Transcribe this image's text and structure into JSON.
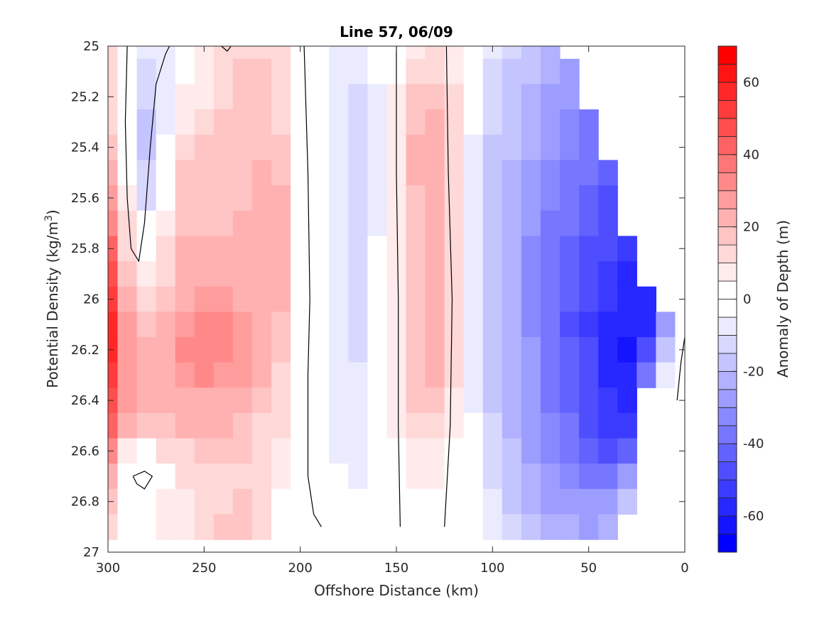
{
  "chart_data": {
    "type": "heatmap",
    "title": "Line 57, 06/09",
    "xlabel": "Offshore Distance (km)",
    "ylabel_text": "Potential Density (kg/m",
    "ylabel_sup": "3",
    "ylabel_close": ")",
    "xlim": [
      300,
      0
    ],
    "ylim": [
      25,
      27
    ],
    "x_ticks": [
      300,
      250,
      200,
      150,
      100,
      50,
      0
    ],
    "x_tick_labels": [
      "300",
      "250",
      "200",
      "150",
      "100",
      "50",
      "0"
    ],
    "y_ticks": [
      25,
      25.2,
      25.4,
      25.6,
      25.8,
      26,
      26.2,
      26.4,
      26.6,
      26.8,
      27
    ],
    "y_tick_labels": [
      "25",
      "25.2",
      "25.4",
      "25.6",
      "25.8",
      "26",
      "26.2",
      "26.4",
      "26.6",
      "26.8",
      "27"
    ],
    "grid": false,
    "colorbar": {
      "label": "Anomaly of Depth (m)",
      "range": [
        -70,
        70
      ],
      "step": 5,
      "ticks": [
        -60,
        -40,
        -20,
        0,
        20,
        40,
        60
      ],
      "tick_labels": [
        "-60",
        "-40",
        "-20",
        "0",
        "20",
        "40",
        "60"
      ],
      "colormap": "blue-white-red",
      "low_color": "#0000ff",
      "mid_color": "#ffffff",
      "high_color": "#ff0000"
    },
    "x_values_km": [
      300,
      290,
      280,
      270,
      260,
      250,
      240,
      230,
      220,
      210,
      200,
      190,
      180,
      170,
      160,
      150,
      140,
      130,
      120,
      110,
      100,
      90,
      80,
      70,
      60,
      50,
      40,
      30,
      20,
      10,
      0
    ],
    "y_values_sigma": [
      25.0,
      25.1,
      25.2,
      25.3,
      25.4,
      25.5,
      25.6,
      25.7,
      25.8,
      25.9,
      26.0,
      26.1,
      26.2,
      26.3,
      26.4,
      26.5,
      26.6,
      26.7,
      26.8,
      26.9
    ],
    "anomaly_m": [
      [
        10,
        0,
        -8,
        -8,
        0,
        5,
        12,
        14,
        14,
        10,
        0,
        -3,
        -6,
        -8,
        -4,
        2,
        8,
        10,
        6,
        -4,
        -10,
        -14,
        -18,
        -22,
        null,
        null,
        null,
        null,
        null,
        null,
        null
      ],
      [
        10,
        0,
        -12,
        -10,
        2,
        5,
        12,
        15,
        15,
        10,
        0,
        -3,
        -8,
        -10,
        -5,
        4,
        12,
        14,
        8,
        -4,
        -12,
        -16,
        -20,
        -24,
        -28,
        null,
        null,
        null,
        null,
        null,
        null
      ],
      [
        12,
        0,
        -15,
        -10,
        5,
        8,
        14,
        16,
        16,
        12,
        0,
        -3,
        -8,
        -12,
        -6,
        5,
        16,
        18,
        10,
        -5,
        -14,
        -18,
        -22,
        -26,
        -30,
        null,
        null,
        null,
        null,
        null,
        null
      ],
      [
        14,
        0,
        -18,
        -8,
        8,
        12,
        16,
        17,
        17,
        14,
        0,
        -3,
        -8,
        -14,
        -6,
        6,
        18,
        20,
        12,
        -5,
        -14,
        -20,
        -24,
        -28,
        -32,
        -36,
        null,
        null,
        null,
        null,
        null
      ],
      [
        18,
        0,
        -18,
        -5,
        12,
        15,
        16,
        18,
        18,
        16,
        0,
        -3,
        -8,
        -14,
        -6,
        8,
        20,
        24,
        14,
        -6,
        -16,
        -20,
        -24,
        -30,
        -34,
        -38,
        null,
        null,
        null,
        null,
        null
      ],
      [
        22,
        2,
        -15,
        -2,
        15,
        16,
        16,
        18,
        20,
        18,
        0,
        -3,
        -8,
        -14,
        -6,
        8,
        20,
        22,
        14,
        -6,
        -16,
        -22,
        -26,
        -32,
        -36,
        -40,
        -44,
        null,
        null,
        null,
        null
      ],
      [
        28,
        5,
        -12,
        0,
        16,
        16,
        16,
        18,
        22,
        20,
        0,
        -3,
        -8,
        -12,
        -6,
        8,
        18,
        20,
        12,
        -6,
        -16,
        -22,
        -28,
        -34,
        -38,
        -42,
        -46,
        null,
        null,
        null,
        null
      ],
      [
        34,
        10,
        -5,
        5,
        18,
        18,
        18,
        20,
        24,
        22,
        0,
        -3,
        -8,
        -12,
        -6,
        8,
        18,
        22,
        12,
        -6,
        -16,
        -24,
        -30,
        -36,
        -40,
        -44,
        -48,
        null,
        null,
        null,
        null
      ],
      [
        40,
        14,
        0,
        10,
        20,
        20,
        20,
        22,
        24,
        22,
        0,
        -3,
        -8,
        -12,
        -5,
        8,
        18,
        22,
        12,
        -6,
        -16,
        -24,
        -32,
        -38,
        -42,
        -46,
        -50,
        -54,
        null,
        null,
        null
      ],
      [
        46,
        18,
        8,
        14,
        22,
        22,
        22,
        22,
        24,
        20,
        0,
        -3,
        -8,
        -12,
        -5,
        8,
        18,
        22,
        12,
        -6,
        -16,
        -24,
        -32,
        -38,
        -44,
        -48,
        -52,
        -56,
        null,
        null,
        null
      ],
      [
        52,
        22,
        14,
        18,
        24,
        26,
        26,
        24,
        24,
        20,
        0,
        -3,
        -8,
        -12,
        -5,
        8,
        18,
        22,
        12,
        -6,
        -16,
        -24,
        -32,
        -38,
        -44,
        -50,
        -54,
        -58,
        -58,
        null,
        null
      ],
      [
        56,
        26,
        18,
        22,
        28,
        30,
        30,
        26,
        22,
        18,
        0,
        -3,
        -8,
        -12,
        -5,
        8,
        18,
        22,
        12,
        -6,
        -16,
        -24,
        -32,
        -38,
        -46,
        -52,
        -56,
        -60,
        -60,
        -30,
        -5
      ],
      [
        56,
        28,
        20,
        24,
        30,
        32,
        30,
        28,
        22,
        16,
        0,
        -3,
        -8,
        -12,
        -5,
        8,
        18,
        22,
        12,
        -6,
        -16,
        -24,
        -30,
        -36,
        -44,
        -50,
        -56,
        -62,
        -50,
        -20,
        0
      ],
      [
        52,
        28,
        20,
        24,
        28,
        30,
        28,
        26,
        20,
        14,
        0,
        -3,
        -8,
        -10,
        -4,
        8,
        18,
        20,
        10,
        -6,
        -16,
        -24,
        -30,
        -36,
        -44,
        -50,
        -56,
        -60,
        -40,
        -10,
        0
      ],
      [
        46,
        26,
        20,
        22,
        24,
        24,
        24,
        22,
        18,
        12,
        0,
        -3,
        -6,
        -10,
        -4,
        6,
        16,
        16,
        8,
        -6,
        -16,
        -24,
        -30,
        -36,
        -42,
        -48,
        -54,
        -58,
        null,
        null,
        null
      ],
      [
        40,
        20,
        16,
        18,
        20,
        20,
        20,
        18,
        14,
        10,
        0,
        -3,
        -6,
        -8,
        -3,
        5,
        12,
        12,
        6,
        -5,
        -14,
        -22,
        -28,
        -34,
        -40,
        -46,
        -52,
        -54,
        null,
        null,
        null
      ],
      [
        32,
        8,
        0,
        10,
        14,
        16,
        18,
        16,
        12,
        8,
        0,
        -3,
        -6,
        -8,
        -3,
        4,
        8,
        8,
        4,
        -5,
        -14,
        -20,
        -26,
        -32,
        -36,
        -42,
        -46,
        -44,
        null,
        null,
        null
      ],
      [
        24,
        -2,
        -4,
        4,
        10,
        12,
        14,
        14,
        10,
        6,
        0,
        -3,
        -5,
        -6,
        -2,
        3,
        6,
        6,
        2,
        -5,
        -12,
        -18,
        -24,
        -28,
        -32,
        -36,
        -38,
        -30,
        null,
        null,
        null
      ],
      [
        18,
        4,
        2,
        6,
        8,
        10,
        14,
        16,
        10,
        4,
        0,
        -2,
        -4,
        -5,
        -2,
        2,
        4,
        4,
        2,
        -4,
        -10,
        -16,
        -22,
        -26,
        -28,
        -30,
        -30,
        -20,
        null,
        null,
        null
      ],
      [
        14,
        4,
        4,
        6,
        8,
        10,
        16,
        18,
        10,
        2,
        0,
        -2,
        -3,
        -4,
        -2,
        1,
        2,
        2,
        1,
        -4,
        -8,
        -14,
        -18,
        -22,
        -24,
        -26,
        -24,
        null,
        null,
        null,
        null
      ]
    ],
    "zero_contour_lines": [
      [
        [
          290,
          25.0
        ],
        [
          291,
          25.3
        ],
        [
          290,
          25.6
        ],
        [
          288,
          25.8
        ],
        [
          284,
          25.85
        ],
        [
          281,
          25.7
        ],
        [
          278,
          25.4
        ],
        [
          275,
          25.15
        ],
        [
          270,
          25.03
        ],
        [
          268,
          25.0
        ]
      ],
      [
        [
          241,
          25.0
        ],
        [
          238,
          25.02
        ],
        [
          236,
          25.0
        ]
      ],
      [
        [
          198,
          25.0
        ],
        [
          196,
          25.5
        ],
        [
          195,
          26.0
        ],
        [
          196,
          26.3
        ],
        [
          196,
          26.7
        ],
        [
          193,
          26.85
        ],
        [
          189,
          26.9
        ]
      ],
      [
        [
          150,
          25.0
        ],
        [
          150,
          25.5
        ],
        [
          149,
          26.0
        ],
        [
          149,
          26.5
        ],
        [
          148,
          26.9
        ]
      ],
      [
        [
          124,
          25.0
        ],
        [
          123,
          25.5
        ],
        [
          121,
          26.0
        ],
        [
          122,
          26.5
        ],
        [
          125,
          26.9
        ]
      ],
      [
        [
          287,
          26.7
        ],
        [
          281,
          26.68
        ],
        [
          277,
          26.7
        ],
        [
          281,
          26.75
        ],
        [
          285,
          26.73
        ],
        [
          287,
          26.7
        ]
      ],
      [
        [
          0,
          26.15
        ],
        [
          2,
          26.25
        ],
        [
          4,
          26.4
        ]
      ]
    ]
  }
}
